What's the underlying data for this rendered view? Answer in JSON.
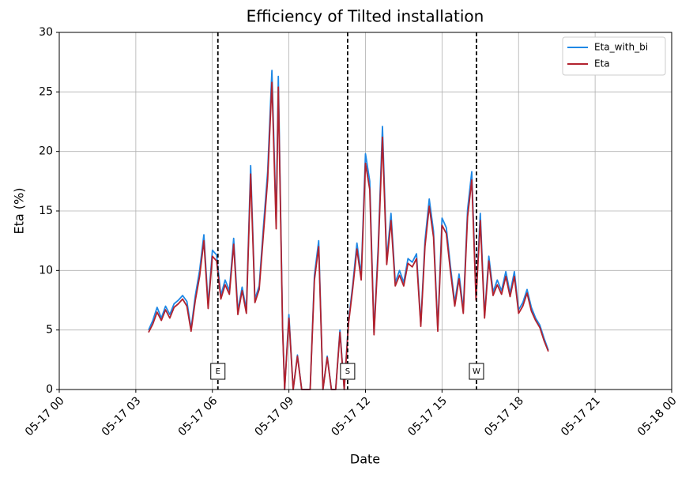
{
  "chart_data": {
    "type": "line",
    "title": "Efficiency of Tilted installation",
    "xlabel": "Date",
    "ylabel": "Eta (%)",
    "x": [
      "05-17 03:30",
      "05-17 03:40",
      "05-17 03:50",
      "05-17 04:00",
      "05-17 04:10",
      "05-17 04:20",
      "05-17 04:30",
      "05-17 04:40",
      "05-17 04:50",
      "05-17 05:00",
      "05-17 05:10",
      "05-17 05:20",
      "05-17 05:30",
      "05-17 05:40",
      "05-17 05:50",
      "05-17 06:00",
      "05-17 06:10",
      "05-17 06:20",
      "05-17 06:30",
      "05-17 06:40",
      "05-17 06:50",
      "05-17 07:00",
      "05-17 07:10",
      "05-17 07:20",
      "05-17 07:30",
      "05-17 07:40",
      "05-17 07:50",
      "05-17 08:00",
      "05-17 08:10",
      "05-17 08:20",
      "05-17 08:30",
      "05-17 08:35",
      "05-17 08:45",
      "05-17 08:50",
      "05-17 09:00",
      "05-17 09:10",
      "05-17 09:20",
      "05-17 09:30",
      "05-17 09:40",
      "05-17 09:50",
      "05-17 10:00",
      "05-17 10:10",
      "05-17 10:20",
      "05-17 10:30",
      "05-17 10:40",
      "05-17 10:50",
      "05-17 11:00",
      "05-17 11:10",
      "05-17 11:20",
      "05-17 11:30",
      "05-17 11:40",
      "05-17 11:50",
      "05-17 12:00",
      "05-17 12:10",
      "05-17 12:20",
      "05-17 12:30",
      "05-17 12:40",
      "05-17 12:50",
      "05-17 13:00",
      "05-17 13:10",
      "05-17 13:20",
      "05-17 13:30",
      "05-17 13:40",
      "05-17 13:50",
      "05-17 14:00",
      "05-17 14:10",
      "05-17 14:20",
      "05-17 14:30",
      "05-17 14:40",
      "05-17 14:50",
      "05-17 15:00",
      "05-17 15:10",
      "05-17 15:20",
      "05-17 15:30",
      "05-17 15:40",
      "05-17 15:50",
      "05-17 16:00",
      "05-17 16:10",
      "05-17 16:20",
      "05-17 16:30",
      "05-17 16:40",
      "05-17 16:50",
      "05-17 17:00",
      "05-17 17:10",
      "05-17 17:20",
      "05-17 17:30",
      "05-17 17:40",
      "05-17 17:50",
      "05-17 18:00",
      "05-17 18:10",
      "05-17 18:20",
      "05-17 18:30",
      "05-17 18:40",
      "05-17 18:50",
      "05-17 19:00",
      "05-17 19:10"
    ],
    "series": [
      {
        "name": "Eta_with_bi",
        "color": "#1f88e5",
        "values": [
          5.0,
          5.8,
          6.9,
          6.0,
          7.0,
          6.3,
          7.2,
          7.5,
          7.9,
          7.4,
          5.1,
          7.9,
          10.0,
          13.0,
          7.1,
          11.7,
          11.3,
          7.9,
          9.2,
          8.3,
          12.7,
          6.6,
          8.6,
          6.7,
          18.8,
          7.6,
          8.7,
          13.6,
          18.3,
          26.8,
          14.0,
          26.3,
          5.3,
          0,
          6.3,
          0,
          2.9,
          0,
          0,
          0,
          9.6,
          12.5,
          0,
          2.8,
          0,
          0,
          5.0,
          0,
          5.7,
          8.8,
          12.3,
          9.6,
          19.8,
          17.5,
          4.8,
          12.0,
          22.1,
          10.9,
          14.8,
          9.0,
          10.0,
          9.0,
          11.0,
          10.7,
          11.4,
          5.5,
          12.5,
          16.0,
          13.3,
          5.1,
          14.4,
          13.6,
          10.3,
          7.3,
          9.7,
          6.7,
          15.1,
          18.3,
          7.8,
          14.8,
          6.2,
          11.2,
          8.2,
          9.2,
          8.3,
          9.9,
          8.1,
          9.9,
          6.7,
          7.3,
          8.4,
          6.9,
          6.0,
          5.4,
          4.3,
          3.3
        ]
      },
      {
        "name": "Eta",
        "color": "#b2222e",
        "values": [
          4.8,
          5.5,
          6.5,
          5.8,
          6.7,
          6.0,
          6.9,
          7.2,
          7.6,
          7.0,
          4.9,
          7.5,
          9.5,
          12.5,
          6.8,
          11.2,
          10.8,
          7.6,
          8.8,
          8.0,
          12.2,
          6.3,
          8.3,
          6.4,
          18.1,
          7.3,
          8.4,
          13.0,
          17.6,
          25.8,
          13.5,
          25.4,
          5.1,
          0,
          6.0,
          0,
          2.8,
          0,
          0,
          0,
          9.2,
          12.0,
          0,
          2.7,
          0,
          0,
          4.8,
          0,
          5.5,
          8.5,
          11.8,
          9.2,
          19.0,
          16.8,
          4.6,
          11.5,
          21.2,
          10.5,
          14.2,
          8.7,
          9.6,
          8.7,
          10.6,
          10.3,
          11.0,
          5.3,
          12.0,
          15.4,
          12.8,
          4.9,
          13.8,
          13.1,
          9.9,
          7.0,
          9.3,
          6.4,
          14.5,
          17.6,
          7.5,
          14.2,
          6.0,
          10.8,
          7.9,
          8.8,
          8.0,
          9.5,
          7.8,
          9.5,
          6.4,
          7.0,
          8.1,
          6.6,
          5.8,
          5.2,
          4.1,
          3.2
        ]
      }
    ],
    "xlim": [
      "05-17 00:00",
      "05-18 00:00"
    ],
    "xticks": [
      {
        "value": "05-17 00:00",
        "label": "05-17 00"
      },
      {
        "value": "05-17 03:00",
        "label": "05-17 03"
      },
      {
        "value": "05-17 06:00",
        "label": "05-17 06"
      },
      {
        "value": "05-17 09:00",
        "label": "05-17 09"
      },
      {
        "value": "05-17 12:00",
        "label": "05-17 12"
      },
      {
        "value": "05-17 15:00",
        "label": "05-17 15"
      },
      {
        "value": "05-17 18:00",
        "label": "05-17 18"
      },
      {
        "value": "05-17 21:00",
        "label": "05-17 21"
      },
      {
        "value": "05-18 00:00",
        "label": "05-18 00"
      }
    ],
    "ylim": [
      0,
      30
    ],
    "yticks": [
      0,
      5,
      10,
      15,
      20,
      25,
      30
    ],
    "grid": true,
    "legend": "upper right",
    "vlines": [
      {
        "x": "05-17 06:13",
        "label": "E"
      },
      {
        "x": "05-17 11:18",
        "label": "S"
      },
      {
        "x": "05-17 16:21",
        "label": "W"
      }
    ]
  }
}
